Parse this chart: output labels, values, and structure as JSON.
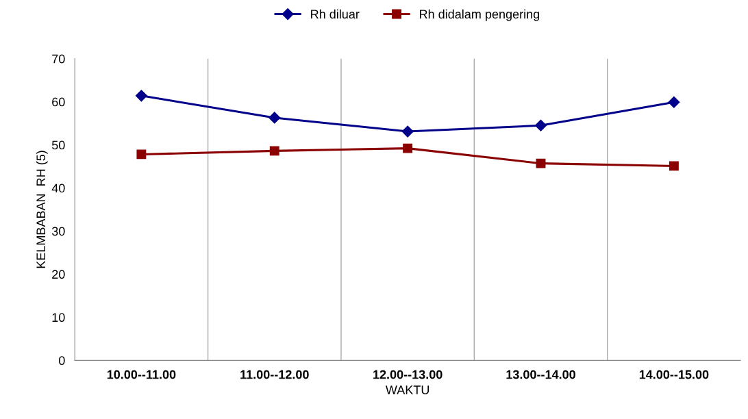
{
  "chart_data": {
    "type": "line",
    "xlabel": "WAKTU",
    "ylabel": "KELMBABAN  RH (5)",
    "categories": [
      "10.00--11.00",
      "11.00--12.00",
      "12.00--13.00",
      "13.00--14.00",
      "14.00--15.00"
    ],
    "series": [
      {
        "name": "Rh diluar",
        "color": "#00008b",
        "marker": "diamond",
        "values": [
          61.4,
          56.3,
          53.1,
          54.5,
          59.9
        ]
      },
      {
        "name": "Rh didalam pengering",
        "color": "#8b0000",
        "marker": "square",
        "values": [
          47.8,
          48.6,
          49.2,
          45.7,
          45.1
        ]
      }
    ],
    "ylim": [
      0,
      70
    ],
    "yticks": [
      0,
      10,
      20,
      30,
      40,
      50,
      60,
      70
    ],
    "grid": "x",
    "legend": "top",
    "line_style": "solid"
  }
}
